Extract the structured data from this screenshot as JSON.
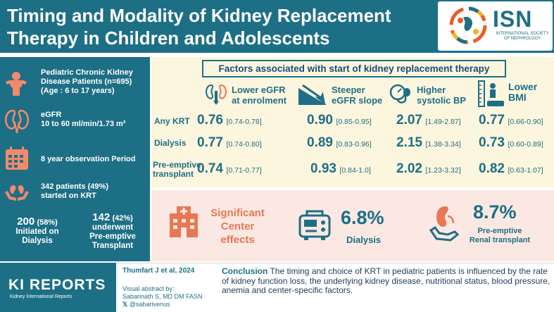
{
  "header": {
    "title_line1": "Timing and Modality of Kidney Replacement",
    "title_line2": "Therapy in Children and Adolescents",
    "logo_text": "ISN",
    "logo_sub": "INTERNATIONAL SOCIETY OF NEPHROLOGY"
  },
  "left": {
    "population_line1": "Pediatric Chronic Kidney",
    "population_line2": "Disease Patients (n=695)",
    "population_line3": "(Age : 6 to 17 years)",
    "egfr_line1": "eGFR",
    "egfr_line2": "10 to 60 ml/min/1.73 m²",
    "observation": "8 year observation Period",
    "krt_line1": "342 patients (49%)",
    "krt_line2": "started on KRT",
    "dialysis_count": "200",
    "dialysis_pct": "(58%)",
    "dialysis_line1": "Initiated on",
    "dialysis_line2": "Dialysis",
    "transplant_count": "142",
    "transplant_pct": "(42%)",
    "transplant_line1": "underwent",
    "transplant_line2": "Pre-emptive",
    "transplant_line3": "Transplant"
  },
  "factors": {
    "title": "Factors associated with start of kidney replacement therapy",
    "columns": [
      {
        "line1": "Lower eGFR",
        "line2": "at enrolment"
      },
      {
        "line1": "Steeper",
        "line2": "eGFR slope"
      },
      {
        "line1": "Higher",
        "line2": "systolic BP"
      },
      {
        "line1": "Lower",
        "line2": "BMI"
      }
    ],
    "rows": [
      {
        "label1": "Any KRT",
        "label2": "",
        "cells": [
          {
            "v": "0.76",
            "ci": "[0.74-0.78]"
          },
          {
            "v": "0.90",
            "ci": "[0.85-0.95]"
          },
          {
            "v": "2.07",
            "ci": "[1.49-2.87]"
          },
          {
            "v": "0.77",
            "ci": "[0.66-0.90]"
          }
        ]
      },
      {
        "label1": "Dialysis",
        "label2": "",
        "cells": [
          {
            "v": "0.77",
            "ci": "[0.74-0.80]"
          },
          {
            "v": "0.89",
            "ci": "[0.83-0.96]"
          },
          {
            "v": "2.15",
            "ci": "[1.38-3.34]"
          },
          {
            "v": "0.73",
            "ci": "[0.60-0.89]"
          }
        ]
      },
      {
        "label1": "Pre-emptive",
        "label2": "transplant",
        "cells": [
          {
            "v": "0.74",
            "ci": "[0.71-0.77]"
          },
          {
            "v": "0.93",
            "ci": "[0.84-1.0]"
          },
          {
            "v": "2.02",
            "ci": "[1.23-3.32]"
          },
          {
            "v": "0.82",
            "ci": "[0.63-1.07]"
          }
        ]
      }
    ]
  },
  "center": {
    "label_line1": "Significant",
    "label_line2": "Center",
    "label_line3": "effects",
    "dialysis_pct": "6.8%",
    "dialysis_label": "Dialysis",
    "transplant_pct": "8.7%",
    "transplant_label1": "Pre-emptive",
    "transplant_label2": "Renal transplant"
  },
  "footer": {
    "journal": "KI REPORTS",
    "journal_sub": "Kidney International Reports",
    "citation": "Thumfart J et al, 2024",
    "va_line1": "Visual abstract by:",
    "va_line2": "Sabarinath S, MD DM FASN",
    "va_line3": "@sabarivenus",
    "conclusion_label": "Conclusion",
    "conclusion_text": " The timing and choice of KRT in pediatric patients is influenced by the rate of kidney function loss, the underlying kidney disease, nutritional status, blood pressure, anemia and center-specific factors."
  },
  "colors": {
    "teal": "#1d6f86",
    "cream": "#fdf6de",
    "pink": "#fce8e2",
    "coral": "#e87755"
  }
}
